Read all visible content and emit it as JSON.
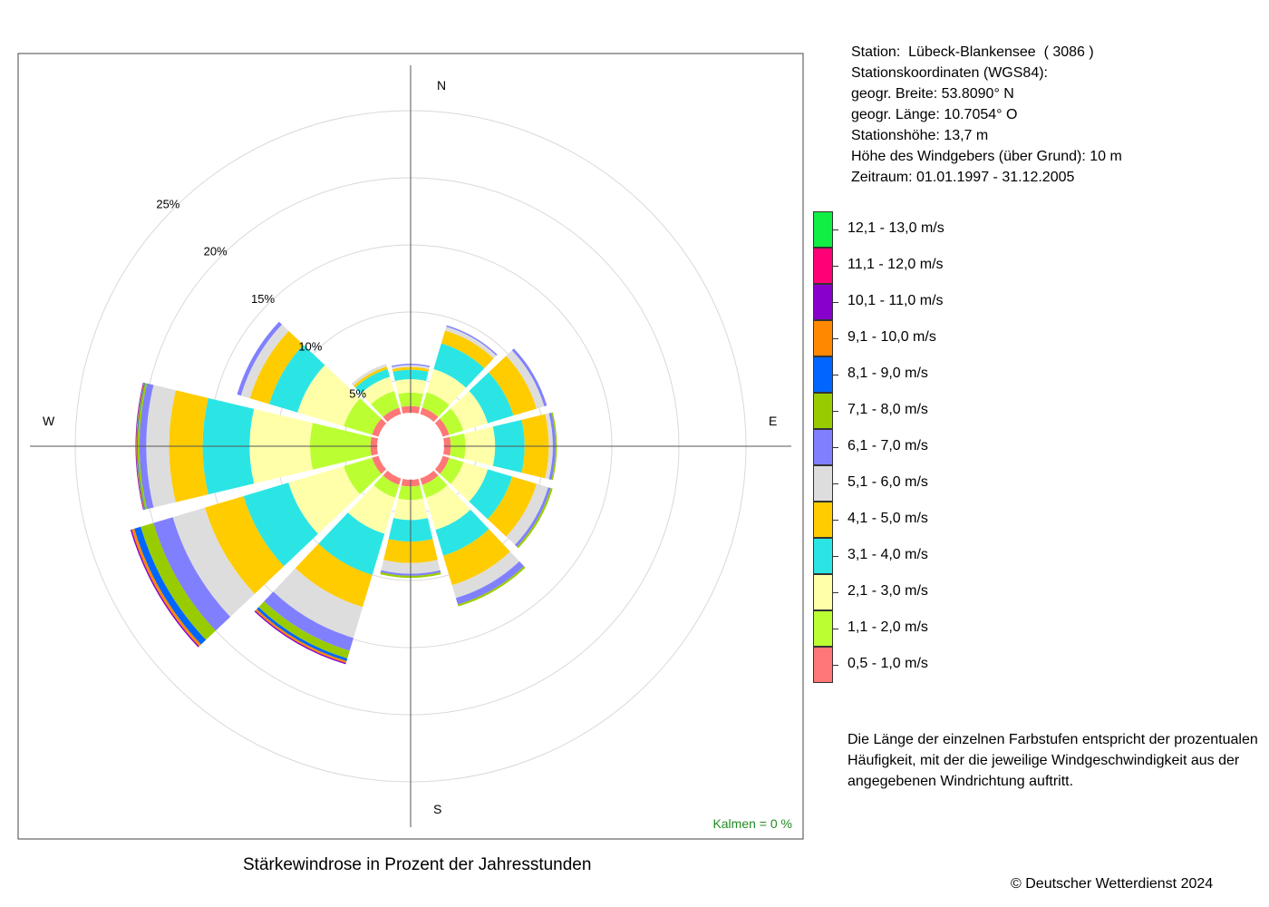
{
  "station": {
    "line1": "Station:  Lübeck-Blankensee  ( 3086 )",
    "line2": "Stationskoordinaten (WGS84):",
    "line3": "geogr. Breite: 53.8090° N",
    "line4": "geogr. Länge: 10.7054° O",
    "line5": "Stationshöhe: 13,7 m",
    "line6": "Höhe des Windgebers (über Grund): 10 m",
    "line7": "Zeitraum: 01.01.1997 - 31.12.2005"
  },
  "legend": [
    {
      "label": "12,1 - 13,0 m/s",
      "color": "#11ee44"
    },
    {
      "label": "11,1 - 12,0 m/s",
      "color": "#ff0077"
    },
    {
      "label": "10,1 - 11,0 m/s",
      "color": "#8800cc"
    },
    {
      "label": "9,1 - 10,0 m/s",
      "color": "#ff8800"
    },
    {
      "label": "8,1 - 9,0 m/s",
      "color": "#0066ff"
    },
    {
      "label": "7,1 - 8,0 m/s",
      "color": "#99cc00"
    },
    {
      "label": "6,1 - 7,0 m/s",
      "color": "#8080ff"
    },
    {
      "label": "5,1 - 6,0 m/s",
      "color": "#dddddd"
    },
    {
      "label": "4,1 - 5,0 m/s",
      "color": "#ffcc00"
    },
    {
      "label": "3,1 - 4,0 m/s",
      "color": "#2be5e5"
    },
    {
      "label": "2,1 - 3,0 m/s",
      "color": "#ffffaa"
    },
    {
      "label": "1,1 - 2,0 m/s",
      "color": "#bbff33"
    },
    {
      "label": "0,5 - 1,0 m/s",
      "color": "#ff7777"
    }
  ],
  "note": "Die Länge der einzelnen Farbstufen entspricht der prozentualen Häufigkeit, mit der die jeweilige Windgeschwindigkeit aus der angegebenen Windrichtung auftritt.",
  "footer": {
    "title": "Stärkewindrose in Prozent der Jahresstunden",
    "copyright": "© Deutscher Wetterdienst  2024"
  },
  "plot": {
    "calm_label": "Kalmen  =  0 %",
    "calm_color": "#228b22",
    "compass": {
      "N": "N",
      "E": "E",
      "S": "S",
      "W": "W"
    }
  },
  "chart_data": {
    "type": "wind-rose",
    "title": "Stärkewindrose in Prozent der Jahresstunden",
    "unit": "%",
    "radial_ticks": [
      {
        "value": 5,
        "label": "5%"
      },
      {
        "value": 10,
        "label": "10%"
      },
      {
        "value": 15,
        "label": "15%"
      },
      {
        "value": 20,
        "label": "20%"
      },
      {
        "value": 25,
        "label": "25%"
      }
    ],
    "radial_max": 25,
    "calm_percent": 0,
    "speed_classes": [
      "0,5 - 1,0 m/s",
      "1,1 - 2,0 m/s",
      "2,1 - 3,0 m/s",
      "3,1 - 4,0 m/s",
      "4,1 - 5,0 m/s",
      "5,1 - 6,0 m/s",
      "6,1 - 7,0 m/s",
      "7,1 - 8,0 m/s",
      "8,1 - 9,0 m/s",
      "9,1 - 10,0 m/s",
      "10,1 - 11,0 m/s",
      "11,1 - 12,0 m/s",
      "12,1 - 13,0 m/s"
    ],
    "colors": [
      "#ff7777",
      "#bbff33",
      "#ffffaa",
      "#2be5e5",
      "#ffcc00",
      "#dddddd",
      "#8080ff",
      "#99cc00",
      "#0066ff",
      "#ff8800",
      "#8800cc",
      "#ff0077",
      "#11ee44"
    ],
    "directions": [
      {
        "deg": 0,
        "cumulative": [
          3.0,
          4.0,
          5.0,
          5.7,
          5.9,
          6.05,
          6.15
        ]
      },
      {
        "deg": 30,
        "cumulative": [
          3.0,
          4.2,
          6.0,
          8.0,
          9.0,
          9.3,
          9.4
        ]
      },
      {
        "deg": 60,
        "cumulative": [
          3.0,
          4.1,
          6.0,
          8.0,
          9.8,
          10.4,
          10.6
        ]
      },
      {
        "deg": 90,
        "cumulative": [
          3.0,
          4.1,
          6.3,
          8.5,
          10.3,
          10.6,
          10.8,
          10.9
        ]
      },
      {
        "deg": 120,
        "cumulative": [
          3.0,
          4.1,
          6.0,
          7.9,
          9.8,
          10.7,
          10.9,
          11.05
        ]
      },
      {
        "deg": 150,
        "cumulative": [
          3.0,
          4.0,
          6.5,
          8.5,
          10.8,
          11.8,
          12.3,
          12.45
        ]
      },
      {
        "deg": 180,
        "cumulative": [
          3.0,
          4.0,
          5.5,
          7.1,
          8.7,
          9.5,
          9.65,
          9.8
        ]
      },
      {
        "deg": 210,
        "cumulative": [
          3.0,
          4.0,
          6.8,
          10.0,
          12.5,
          14.9,
          15.9,
          16.5,
          16.7,
          16.85,
          16.95
        ]
      },
      {
        "deg": 240,
        "cumulative": [
          3.0,
          5.2,
          9.5,
          13.0,
          16.0,
          18.5,
          20.0,
          21.0,
          21.5,
          21.7,
          21.8
        ]
      },
      {
        "deg": 270,
        "cumulative": [
          3.0,
          7.5,
          12.0,
          15.5,
          18.0,
          19.7,
          20.2,
          20.35,
          20.4,
          20.45,
          20.5
        ]
      },
      {
        "deg": 300,
        "cumulative": [
          3.0,
          5.2,
          8.8,
          11.0,
          12.5,
          13.2,
          13.5
        ]
      },
      {
        "deg": 330,
        "cumulative": [
          3.0,
          4.3,
          5.4,
          6.0,
          6.2,
          6.4
        ]
      }
    ]
  }
}
